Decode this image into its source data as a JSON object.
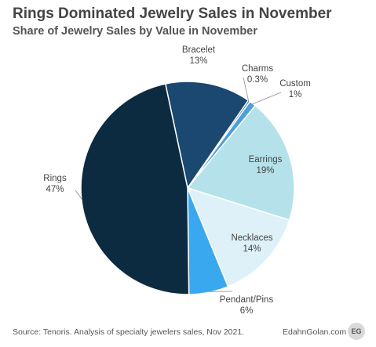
{
  "title": "Rings Dominated Jewelry Sales in November",
  "subtitle": "Share of Jewelry Sales by Value in November",
  "footer": {
    "source": "Source: Tenoris.  Analysis of specialty jewelers sales, Nov 2021.",
    "brand": "EdahnGolan.com",
    "badge": "EG"
  },
  "chart_data": {
    "type": "pie",
    "title": "Rings Dominated Jewelry Sales in November",
    "subtitle": "Share of Jewelry Sales by Value in November",
    "start_category": "Bracelet",
    "direction": "clockwise",
    "slices": [
      {
        "name": "Bracelet",
        "value": 13,
        "label": "13%",
        "color": "#1a4870"
      },
      {
        "name": "Charms",
        "value": 0.3,
        "label": "0.3%",
        "color": "#2f6fa3"
      },
      {
        "name": "Custom",
        "value": 1,
        "label": "1%",
        "color": "#4d9fd8"
      },
      {
        "name": "Earrings",
        "value": 19,
        "label": "19%",
        "color": "#b5e1ea"
      },
      {
        "name": "Necklaces",
        "value": 14,
        "label": "14%",
        "color": "#dff1f8"
      },
      {
        "name": "Pendant/Pins",
        "value": 6,
        "label": "6%",
        "color": "#3aa8ee"
      },
      {
        "name": "Rings",
        "value": 47,
        "label": "47%",
        "color": "#0d2b40"
      }
    ]
  }
}
